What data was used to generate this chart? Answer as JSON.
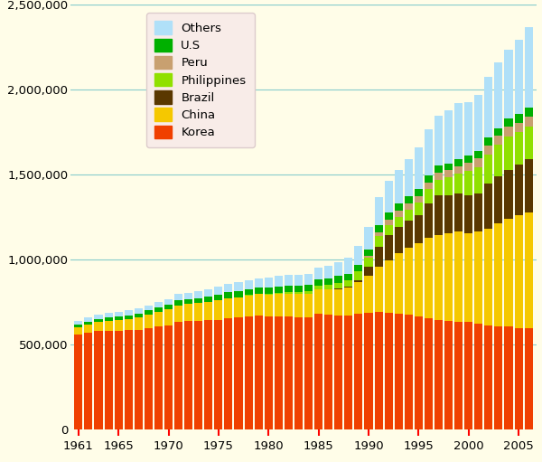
{
  "years": [
    1961,
    1962,
    1963,
    1964,
    1965,
    1966,
    1967,
    1968,
    1969,
    1970,
    1971,
    1972,
    1973,
    1974,
    1975,
    1976,
    1977,
    1978,
    1979,
    1980,
    1981,
    1982,
    1983,
    1984,
    1985,
    1986,
    1987,
    1988,
    1989,
    1990,
    1991,
    1992,
    1993,
    1994,
    1995,
    1996,
    1997,
    1998,
    1999,
    2000,
    2001,
    2002,
    2003,
    2004,
    2005,
    2006
  ],
  "Korea": [
    557000,
    569000,
    579000,
    579000,
    583000,
    584000,
    588000,
    598000,
    607000,
    615000,
    636000,
    638000,
    641000,
    643000,
    647000,
    655000,
    659000,
    664000,
    669000,
    664000,
    667000,
    665000,
    659000,
    659000,
    683000,
    677000,
    673000,
    670000,
    681000,
    687000,
    693000,
    688000,
    682000,
    676000,
    666000,
    657000,
    645000,
    638000,
    636000,
    635000,
    625000,
    614000,
    607000,
    607000,
    599000,
    598000
  ],
  "China": [
    46000,
    50000,
    55000,
    59000,
    63000,
    67000,
    72000,
    79000,
    86000,
    92000,
    96000,
    100000,
    103000,
    109000,
    114000,
    118000,
    121000,
    126000,
    128000,
    130000,
    132000,
    135000,
    138000,
    139000,
    143000,
    148000,
    155000,
    165000,
    186000,
    218000,
    264000,
    308000,
    355000,
    395000,
    433000,
    470000,
    499000,
    519000,
    529000,
    519000,
    541000,
    568000,
    608000,
    634000,
    660000,
    680000
  ],
  "Brazil": [
    0,
    0,
    0,
    0,
    0,
    0,
    0,
    0,
    0,
    0,
    0,
    0,
    0,
    0,
    0,
    0,
    0,
    0,
    0,
    0,
    0,
    0,
    0,
    0,
    0,
    0,
    2000,
    4000,
    14000,
    56000,
    119000,
    147000,
    154000,
    159000,
    165000,
    202000,
    233000,
    222000,
    224000,
    224000,
    222000,
    268000,
    274000,
    286000,
    302000,
    312000
  ],
  "Philippines": [
    0,
    0,
    0,
    0,
    0,
    0,
    0,
    0,
    0,
    0,
    0,
    0,
    0,
    0,
    0,
    0,
    0,
    1000,
    2000,
    5000,
    7000,
    10000,
    13000,
    18000,
    22000,
    28000,
    35000,
    41000,
    50000,
    49000,
    61000,
    62000,
    62000,
    63000,
    74000,
    85000,
    93000,
    105000,
    116000,
    144000,
    156000,
    169000,
    185000,
    199000,
    188000,
    193000
  ],
  "Peru": [
    0,
    0,
    0,
    0,
    0,
    0,
    0,
    0,
    0,
    0,
    0,
    0,
    0,
    0,
    0,
    0,
    0,
    0,
    0,
    0,
    0,
    0,
    0,
    0,
    0,
    0,
    0,
    0,
    0,
    10000,
    26000,
    31000,
    33000,
    36000,
    37000,
    37000,
    40000,
    41000,
    42000,
    46000,
    50000,
    52000,
    53000,
    55000,
    57000,
    58000
  ],
  "US": [
    16000,
    17000,
    18000,
    20000,
    21000,
    22000,
    23000,
    24000,
    26000,
    27000,
    28000,
    29000,
    30000,
    31000,
    33000,
    34000,
    35000,
    36000,
    37000,
    38000,
    38000,
    38000,
    38000,
    38000,
    38000,
    38000,
    38000,
    38000,
    38000,
    39000,
    39000,
    42000,
    43000,
    43000,
    43000,
    44000,
    43000,
    42000,
    42000,
    44000,
    46000,
    47000,
    47000,
    48000,
    49000,
    51000
  ],
  "Others": [
    22000,
    23000,
    25000,
    27000,
    28000,
    29000,
    30000,
    31000,
    32000,
    34000,
    37000,
    38000,
    41000,
    44000,
    47000,
    49000,
    51000,
    52000,
    55000,
    57000,
    59000,
    62000,
    64000,
    64000,
    67000,
    73000,
    80000,
    92000,
    111000,
    134000,
    165000,
    185000,
    201000,
    218000,
    243000,
    271000,
    293000,
    310000,
    331000,
    313000,
    330000,
    355000,
    384000,
    408000,
    437000,
    478000
  ],
  "colors": {
    "Korea": "#f04000",
    "China": "#f5c800",
    "Brazil": "#5a3800",
    "Philippines": "#90e000",
    "Peru": "#c8a070",
    "US": "#00b000",
    "Others": "#b0e0f8"
  },
  "background_color": "#fffde8",
  "plot_background": "#fffde8",
  "ylim": [
    0,
    2500000
  ],
  "yticks": [
    0,
    500000,
    1000000,
    1500000,
    2000000,
    2500000
  ],
  "grid_color": "#88cccc",
  "legend_order": [
    "Others",
    "U.S",
    "Peru",
    "Philippines",
    "Brazil",
    "China",
    "Korea"
  ],
  "legend_colors": [
    "#b0e0f8",
    "#00b000",
    "#c8a070",
    "#90e000",
    "#5a3800",
    "#f5c800",
    "#f04000"
  ],
  "xtick_labels": [
    "1961",
    "1965",
    "1970",
    "1975",
    "1980",
    "1985",
    "1990",
    "1995",
    "2000",
    "2005"
  ],
  "xtick_pos": [
    1961,
    1965,
    1970,
    1975,
    1980,
    1985,
    1990,
    1995,
    2000,
    2005
  ]
}
